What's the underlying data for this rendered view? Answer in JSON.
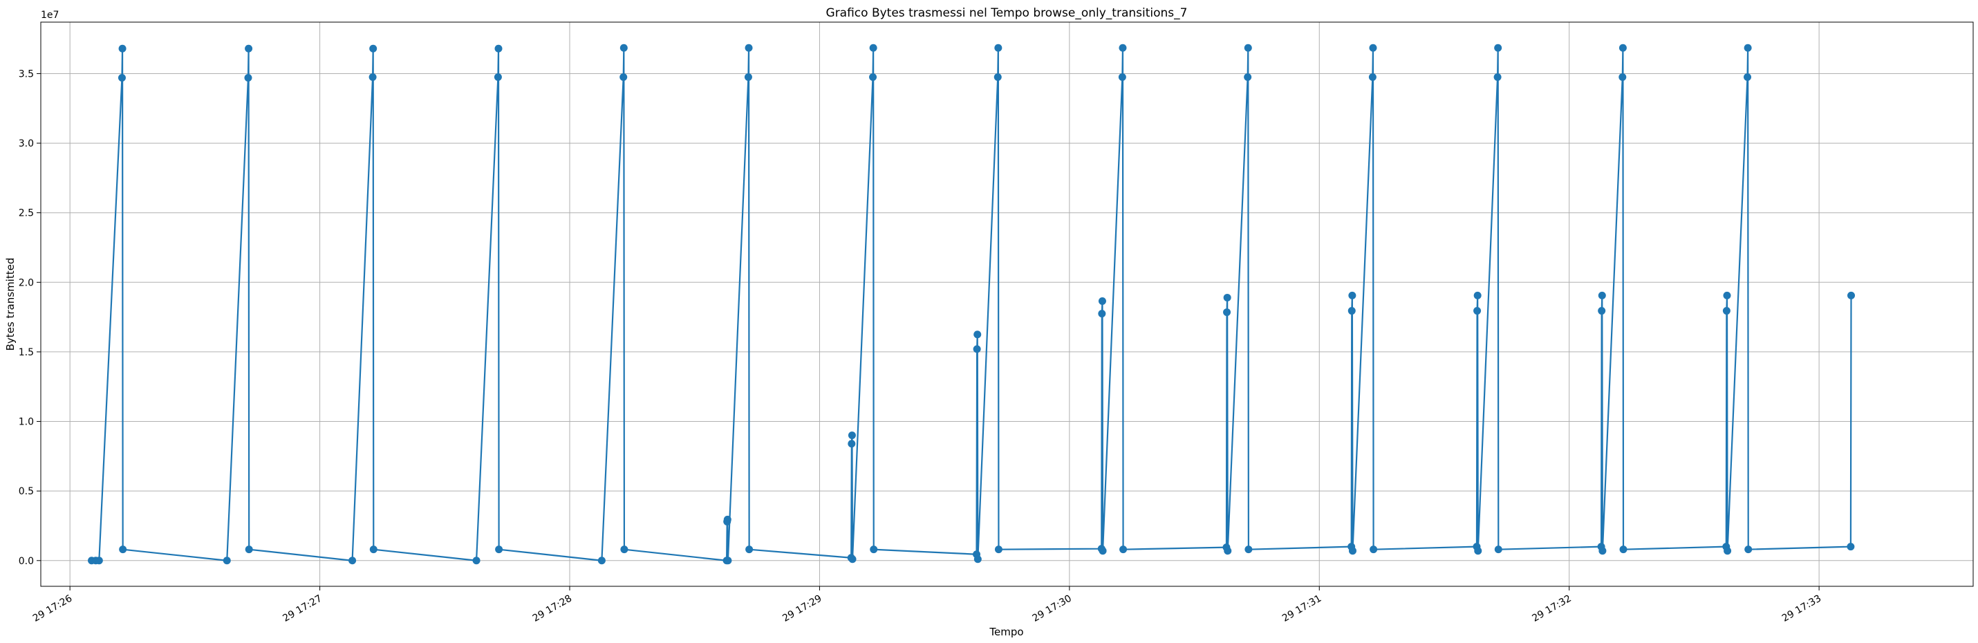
{
  "chart_data": {
    "type": "line",
    "title": "Grafico Bytes trasmessi nel Tempo browse_only_transitions_7",
    "xlabel": "Tempo",
    "ylabel": "Bytes transmitted",
    "y_offset_label": "1e7",
    "ylim": [
      -1850000,
      38700000
    ],
    "xlim": [
      "17:25:53",
      "17:33:37"
    ],
    "grid": true,
    "marker": "circle",
    "line_color": "#1f77b4",
    "x_ticks": [
      {
        "time": "17:26:00",
        "label": "29 17:26"
      },
      {
        "time": "17:27:00",
        "label": "29 17:27"
      },
      {
        "time": "17:28:00",
        "label": "29 17:28"
      },
      {
        "time": "17:29:00",
        "label": "29 17:29"
      },
      {
        "time": "17:30:00",
        "label": "29 17:30"
      },
      {
        "time": "17:31:00",
        "label": "29 17:31"
      },
      {
        "time": "17:32:00",
        "label": "29 17:32"
      },
      {
        "time": "17:33:00",
        "label": "29 17:33"
      }
    ],
    "y_ticks": [
      {
        "value": 0,
        "label": "0.0"
      },
      {
        "value": 5000000,
        "label": "0.5"
      },
      {
        "value": 10000000,
        "label": "1.0"
      },
      {
        "value": 15000000,
        "label": "1.5"
      },
      {
        "value": 20000000,
        "label": "2.0"
      },
      {
        "value": 25000000,
        "label": "2.5"
      },
      {
        "value": 30000000,
        "label": "3.0"
      },
      {
        "value": 35000000,
        "label": "3.5"
      }
    ],
    "series": [
      {
        "points": [
          [
            "17:26:05.2",
            0
          ],
          [
            "17:26:06.2",
            0
          ],
          [
            "17:26:07",
            0
          ],
          [
            "17:26:12.5",
            34700000
          ],
          [
            "17:26:12.6",
            36800000
          ],
          [
            "17:26:12.7",
            800000
          ],
          [
            "17:26:37.7",
            0
          ],
          [
            "17:26:42.8",
            34700000
          ],
          [
            "17:26:42.9",
            36800000
          ],
          [
            "17:26:43",
            800000
          ],
          [
            "17:27:07.8",
            0
          ],
          [
            "17:27:12.7",
            34750000
          ],
          [
            "17:27:12.8",
            36800000
          ],
          [
            "17:27:12.9",
            800000
          ],
          [
            "17:27:37.6",
            0
          ],
          [
            "17:27:42.8",
            34750000
          ],
          [
            "17:27:42.9",
            36800000
          ],
          [
            "17:27:43",
            800000
          ],
          [
            "17:28:07.7",
            0
          ],
          [
            "17:28:12.9",
            34750000
          ],
          [
            "17:28:13",
            36850000
          ],
          [
            "17:28:13.1",
            800000
          ],
          [
            "17:28:37.7",
            0
          ],
          [
            "17:28:37.8",
            2800000
          ],
          [
            "17:28:37.9",
            2950000
          ],
          [
            "17:28:38",
            0
          ],
          [
            "17:28:42.9",
            34750000
          ],
          [
            "17:28:43",
            36850000
          ],
          [
            "17:28:43.1",
            800000
          ],
          [
            "17:29:07.6",
            200000
          ],
          [
            "17:29:07.7",
            8400000
          ],
          [
            "17:29:07.8",
            9000000
          ],
          [
            "17:29:07.9",
            100000
          ],
          [
            "17:29:12.8",
            34750000
          ],
          [
            "17:29:12.9",
            36850000
          ],
          [
            "17:29:13",
            800000
          ],
          [
            "17:29:37.7",
            450000
          ],
          [
            "17:29:37.8",
            15200000
          ],
          [
            "17:29:37.9",
            16250000
          ],
          [
            "17:29:38",
            100000
          ],
          [
            "17:29:42.8",
            34750000
          ],
          [
            "17:29:42.9",
            36850000
          ],
          [
            "17:29:43",
            800000
          ],
          [
            "17:30:07.7",
            850000
          ],
          [
            "17:30:07.8",
            17750000
          ],
          [
            "17:30:07.9",
            18650000
          ],
          [
            "17:30:08",
            700000
          ],
          [
            "17:30:12.7",
            34750000
          ],
          [
            "17:30:12.8",
            36850000
          ],
          [
            "17:30:12.9",
            800000
          ],
          [
            "17:30:37.7",
            950000
          ],
          [
            "17:30:37.8",
            17850000
          ],
          [
            "17:30:37.9",
            18900000
          ],
          [
            "17:30:38",
            700000
          ],
          [
            "17:30:42.8",
            34750000
          ],
          [
            "17:30:42.9",
            36850000
          ],
          [
            "17:30:43",
            800000
          ],
          [
            "17:31:07.7",
            1000000
          ],
          [
            "17:31:07.8",
            17950000
          ],
          [
            "17:31:07.9",
            19050000
          ],
          [
            "17:31:08",
            700000
          ],
          [
            "17:31:12.8",
            34750000
          ],
          [
            "17:31:12.9",
            36850000
          ],
          [
            "17:31:13",
            800000
          ],
          [
            "17:31:37.8",
            1000000
          ],
          [
            "17:31:37.9",
            17950000
          ],
          [
            "17:31:38",
            19050000
          ],
          [
            "17:31:38.1",
            700000
          ],
          [
            "17:31:42.8",
            34750000
          ],
          [
            "17:31:42.9",
            36850000
          ],
          [
            "17:31:43",
            800000
          ],
          [
            "17:32:07.7",
            1000000
          ],
          [
            "17:32:07.8",
            17950000
          ],
          [
            "17:32:07.9",
            19050000
          ],
          [
            "17:32:08",
            700000
          ],
          [
            "17:32:12.8",
            34750000
          ],
          [
            "17:32:12.9",
            36850000
          ],
          [
            "17:32:13",
            800000
          ],
          [
            "17:32:37.7",
            1000000
          ],
          [
            "17:32:37.8",
            17950000
          ],
          [
            "17:32:37.9",
            19050000
          ],
          [
            "17:32:38",
            700000
          ],
          [
            "17:32:42.8",
            34750000
          ],
          [
            "17:32:42.9",
            36850000
          ],
          [
            "17:32:43",
            800000
          ],
          [
            "17:33:07.6",
            1000000
          ],
          [
            "17:33:07.7",
            19050000
          ]
        ]
      }
    ]
  }
}
